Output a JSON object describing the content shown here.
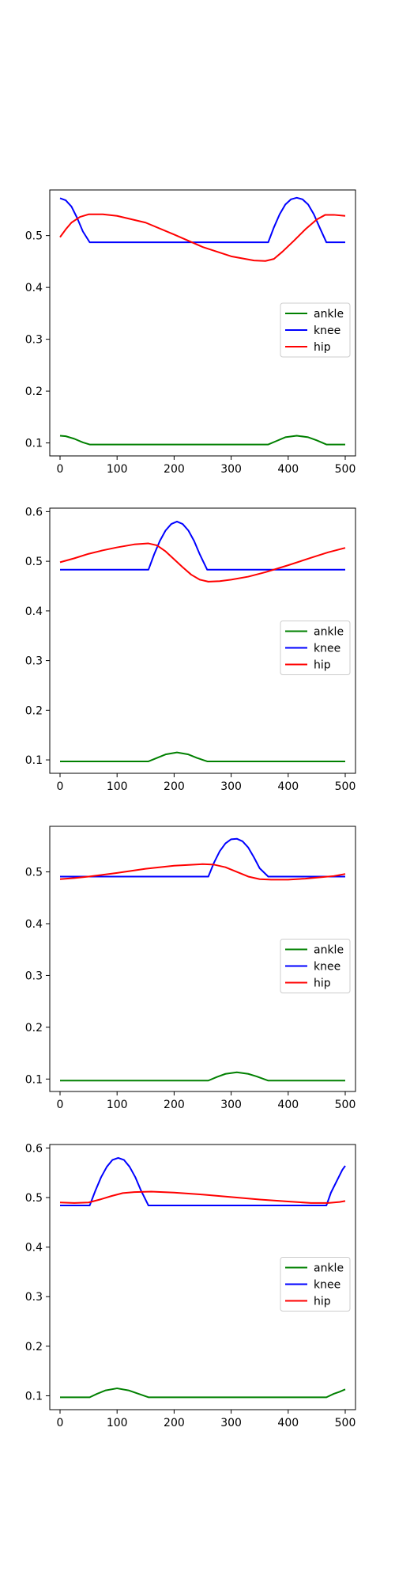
{
  "chart_data": [
    {
      "type": "line",
      "xlim": [
        -18,
        518
      ],
      "ylim": [
        0.075,
        0.588
      ],
      "xticks": [
        0,
        100,
        200,
        300,
        400,
        500
      ],
      "yticks": [
        0.1,
        0.2,
        0.3,
        0.4,
        0.5
      ],
      "grid": false,
      "legend_position": "center-right",
      "series": [
        {
          "name": "ankle",
          "color": "#008000",
          "x": [
            0,
            10,
            25,
            40,
            52,
            100,
            200,
            300,
            365,
            380,
            395,
            415,
            435,
            450,
            467,
            480,
            500
          ],
          "y": [
            0.114,
            0.113,
            0.108,
            0.101,
            0.097,
            0.097,
            0.097,
            0.097,
            0.097,
            0.104,
            0.111,
            0.114,
            0.111,
            0.105,
            0.097,
            0.097,
            0.097
          ]
        },
        {
          "name": "knee",
          "color": "#0000ff",
          "x": [
            0,
            10,
            20,
            30,
            40,
            52,
            100,
            200,
            300,
            365,
            375,
            385,
            395,
            405,
            415,
            425,
            435,
            445,
            455,
            467,
            480,
            500
          ],
          "y": [
            0.572,
            0.568,
            0.556,
            0.534,
            0.508,
            0.487,
            0.487,
            0.487,
            0.487,
            0.487,
            0.516,
            0.541,
            0.56,
            0.57,
            0.573,
            0.57,
            0.56,
            0.541,
            0.516,
            0.487,
            0.487,
            0.487
          ]
        },
        {
          "name": "hip",
          "color": "#ff0000",
          "x": [
            0,
            10,
            20,
            35,
            50,
            75,
            100,
            150,
            200,
            250,
            300,
            340,
            360,
            375,
            390,
            410,
            430,
            450,
            465,
            480,
            500
          ],
          "y": [
            0.497,
            0.512,
            0.525,
            0.536,
            0.541,
            0.541,
            0.538,
            0.525,
            0.502,
            0.478,
            0.46,
            0.452,
            0.451,
            0.455,
            0.469,
            0.49,
            0.512,
            0.531,
            0.54,
            0.54,
            0.538
          ]
        }
      ]
    },
    {
      "type": "line",
      "xlim": [
        -18,
        518
      ],
      "ylim": [
        0.073,
        0.607
      ],
      "xticks": [
        0,
        100,
        200,
        300,
        400,
        500
      ],
      "yticks": [
        0.1,
        0.2,
        0.3,
        0.4,
        0.5,
        0.6
      ],
      "grid": false,
      "legend_position": "center-right",
      "series": [
        {
          "name": "ankle",
          "color": "#008000",
          "x": [
            0,
            50,
            100,
            155,
            170,
            185,
            205,
            225,
            240,
            258,
            300,
            400,
            500
          ],
          "y": [
            0.097,
            0.097,
            0.097,
            0.097,
            0.104,
            0.111,
            0.115,
            0.111,
            0.104,
            0.097,
            0.097,
            0.097,
            0.097
          ]
        },
        {
          "name": "knee",
          "color": "#0000ff",
          "x": [
            0,
            50,
            100,
            155,
            165,
            175,
            185,
            195,
            205,
            215,
            225,
            235,
            245,
            258,
            300,
            400,
            500
          ],
          "y": [
            0.483,
            0.483,
            0.483,
            0.483,
            0.514,
            0.541,
            0.562,
            0.575,
            0.58,
            0.575,
            0.562,
            0.541,
            0.514,
            0.483,
            0.483,
            0.483,
            0.483
          ]
        },
        {
          "name": "hip",
          "color": "#ff0000",
          "x": [
            0,
            25,
            50,
            75,
            100,
            130,
            155,
            170,
            185,
            200,
            215,
            230,
            245,
            260,
            280,
            300,
            330,
            360,
            400,
            440,
            470,
            500
          ],
          "y": [
            0.498,
            0.506,
            0.515,
            0.522,
            0.528,
            0.534,
            0.536,
            0.532,
            0.52,
            0.504,
            0.488,
            0.473,
            0.463,
            0.459,
            0.46,
            0.463,
            0.469,
            0.478,
            0.492,
            0.507,
            0.518,
            0.527
          ]
        }
      ]
    },
    {
      "type": "line",
      "xlim": [
        -18,
        518
      ],
      "ylim": [
        0.076,
        0.588
      ],
      "xticks": [
        0,
        100,
        200,
        300,
        400,
        500
      ],
      "yticks": [
        0.1,
        0.2,
        0.3,
        0.4,
        0.5
      ],
      "grid": false,
      "legend_position": "center-right",
      "series": [
        {
          "name": "ankle",
          "color": "#008000",
          "x": [
            0,
            100,
            200,
            260,
            275,
            290,
            310,
            330,
            345,
            365,
            400,
            500
          ],
          "y": [
            0.097,
            0.097,
            0.097,
            0.097,
            0.104,
            0.11,
            0.113,
            0.11,
            0.105,
            0.097,
            0.097,
            0.097
          ]
        },
        {
          "name": "knee",
          "color": "#0000ff",
          "x": [
            0,
            100,
            200,
            260,
            270,
            280,
            290,
            300,
            310,
            320,
            330,
            340,
            350,
            365,
            400,
            500
          ],
          "y": [
            0.491,
            0.491,
            0.491,
            0.491,
            0.518,
            0.54,
            0.555,
            0.563,
            0.564,
            0.559,
            0.547,
            0.528,
            0.507,
            0.491,
            0.491,
            0.491
          ]
        },
        {
          "name": "hip",
          "color": "#ff0000",
          "x": [
            0,
            25,
            50,
            100,
            150,
            200,
            250,
            270,
            290,
            310,
            330,
            350,
            370,
            400,
            430,
            460,
            480,
            500
          ],
          "y": [
            0.486,
            0.488,
            0.491,
            0.498,
            0.506,
            0.512,
            0.515,
            0.514,
            0.509,
            0.5,
            0.491,
            0.486,
            0.485,
            0.485,
            0.487,
            0.49,
            0.492,
            0.496
          ]
        }
      ]
    },
    {
      "type": "line",
      "xlim": [
        -18,
        518
      ],
      "ylim": [
        0.072,
        0.607
      ],
      "xticks": [
        0,
        100,
        200,
        300,
        400,
        500
      ],
      "yticks": [
        0.1,
        0.2,
        0.3,
        0.4,
        0.5,
        0.6
      ],
      "grid": false,
      "legend_position": "center-right",
      "series": [
        {
          "name": "ankle",
          "color": "#008000",
          "x": [
            0,
            52,
            65,
            80,
            100,
            120,
            135,
            155,
            200,
            300,
            400,
            467,
            480,
            490,
            500
          ],
          "y": [
            0.097,
            0.097,
            0.104,
            0.111,
            0.115,
            0.111,
            0.105,
            0.097,
            0.097,
            0.097,
            0.097,
            0.097,
            0.104,
            0.108,
            0.113
          ]
        },
        {
          "name": "knee",
          "color": "#0000ff",
          "x": [
            0,
            52,
            62,
            72,
            82,
            92,
            102,
            112,
            122,
            132,
            142,
            155,
            200,
            300,
            400,
            467,
            475,
            485,
            495,
            500
          ],
          "y": [
            0.484,
            0.484,
            0.514,
            0.541,
            0.562,
            0.576,
            0.58,
            0.576,
            0.562,
            0.541,
            0.514,
            0.484,
            0.484,
            0.484,
            0.484,
            0.484,
            0.51,
            0.533,
            0.556,
            0.564
          ]
        },
        {
          "name": "hip",
          "color": "#ff0000",
          "x": [
            0,
            25,
            50,
            70,
            90,
            110,
            130,
            160,
            200,
            250,
            300,
            350,
            400,
            440,
            470,
            490,
            500
          ],
          "y": [
            0.49,
            0.489,
            0.49,
            0.496,
            0.503,
            0.509,
            0.511,
            0.512,
            0.51,
            0.506,
            0.501,
            0.496,
            0.492,
            0.489,
            0.489,
            0.491,
            0.493
          ]
        }
      ]
    }
  ]
}
